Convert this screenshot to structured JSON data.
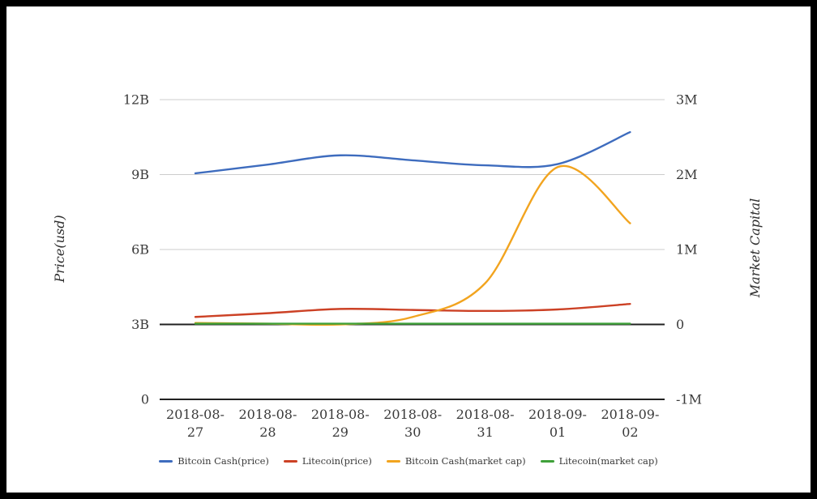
{
  "figure": {
    "background": "#ffffff",
    "frame_border_color": "#000000"
  },
  "chart_data": {
    "type": "line",
    "title": "",
    "x": {
      "label": "",
      "categories": [
        "2018-08-27",
        "2018-08-28",
        "2018-08-29",
        "2018-08-30",
        "2018-08-31",
        "2018-09-01",
        "2018-09-02"
      ]
    },
    "left_axis": {
      "title": "Price(usd)",
      "unit": "B",
      "range": [
        0,
        12
      ],
      "ticks": [
        {
          "value": 0,
          "label": "0"
        },
        {
          "value": 3,
          "label": "3B"
        },
        {
          "value": 6,
          "label": "6B"
        },
        {
          "value": 9,
          "label": "9B"
        },
        {
          "value": 12,
          "label": "12B"
        }
      ]
    },
    "right_axis": {
      "title": "Market Capital",
      "unit": "M",
      "range": [
        -1,
        3
      ],
      "ticks": [
        {
          "value": -1,
          "label": "-1M"
        },
        {
          "value": 0,
          "label": "0"
        },
        {
          "value": 1,
          "label": "1M"
        },
        {
          "value": 2,
          "label": "2M"
        },
        {
          "value": 3,
          "label": "3M"
        }
      ]
    },
    "series": [
      {
        "name": "Bitcoin Cash(price)",
        "axis": "left",
        "color": "#3e6cbe",
        "values": [
          9.05,
          9.4,
          9.77,
          9.57,
          9.37,
          9.42,
          10.7
        ]
      },
      {
        "name": "Litecoin(price)",
        "axis": "left",
        "color": "#cc4125",
        "values": [
          3.3,
          3.45,
          3.62,
          3.58,
          3.54,
          3.6,
          3.82
        ]
      },
      {
        "name": "Bitcoin Cash(market cap)",
        "axis": "right",
        "color": "#f2a41f",
        "values": [
          0.02,
          0.01,
          0.0,
          0.1,
          0.55,
          2.1,
          1.35
        ]
      },
      {
        "name": "Litecoin(market cap)",
        "axis": "right",
        "color": "#3fa13a",
        "values": [
          0.01,
          0.01,
          0.01,
          0.01,
          0.01,
          0.01,
          0.01
        ]
      }
    ],
    "grid": {
      "show": true,
      "color": "#cccccc",
      "baseline_color": "#212121"
    },
    "legend": {
      "position": "bottom"
    },
    "text_color": "#3a3a3a"
  }
}
